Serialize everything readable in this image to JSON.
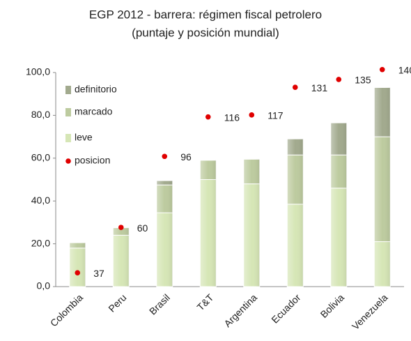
{
  "chart_data": {
    "type": "bar",
    "stacked": true,
    "title": "EGP 2012 - barrera: régimen fiscal petrolero",
    "subtitle": "(puntaje y posición mundial)",
    "categories": [
      "Colombia",
      "Peru",
      "Brasil",
      "T&T",
      "Argentina",
      "Ecuador",
      "Bolivia",
      "Venezuela"
    ],
    "series": [
      {
        "name": "leve",
        "color": "#d6e6b6",
        "values": [
          18,
          24,
          34.5,
          50,
          48,
          38.5,
          46,
          21
        ]
      },
      {
        "name": "marcado",
        "color": "#bdcb9f",
        "values": [
          2.5,
          3.5,
          13,
          9,
          11.5,
          23,
          15.5,
          49
        ]
      },
      {
        "name": "definitorio",
        "color": "#a2aa8e",
        "values": [
          0,
          0,
          2,
          0,
          0,
          7.5,
          15,
          23
        ]
      },
      {
        "name": "posicion",
        "type": "scatter",
        "axis": "y2",
        "color": "#e00000",
        "values": [
          37,
          60,
          96,
          116,
          117,
          131,
          135,
          140
        ]
      }
    ],
    "ylim": [
      0,
      100
    ],
    "yticks": [
      {
        "value": 0,
        "label": "0,0"
      },
      {
        "value": 20,
        "label": "20,0"
      },
      {
        "value": 40,
        "label": "40,0"
      },
      {
        "value": 60,
        "label": "60,0"
      },
      {
        "value": 80,
        "label": "80,0"
      },
      {
        "value": 100,
        "label": "100,0"
      }
    ],
    "y2lim": [
      30,
      138.5
    ],
    "grid": false,
    "legend": "upper left"
  }
}
